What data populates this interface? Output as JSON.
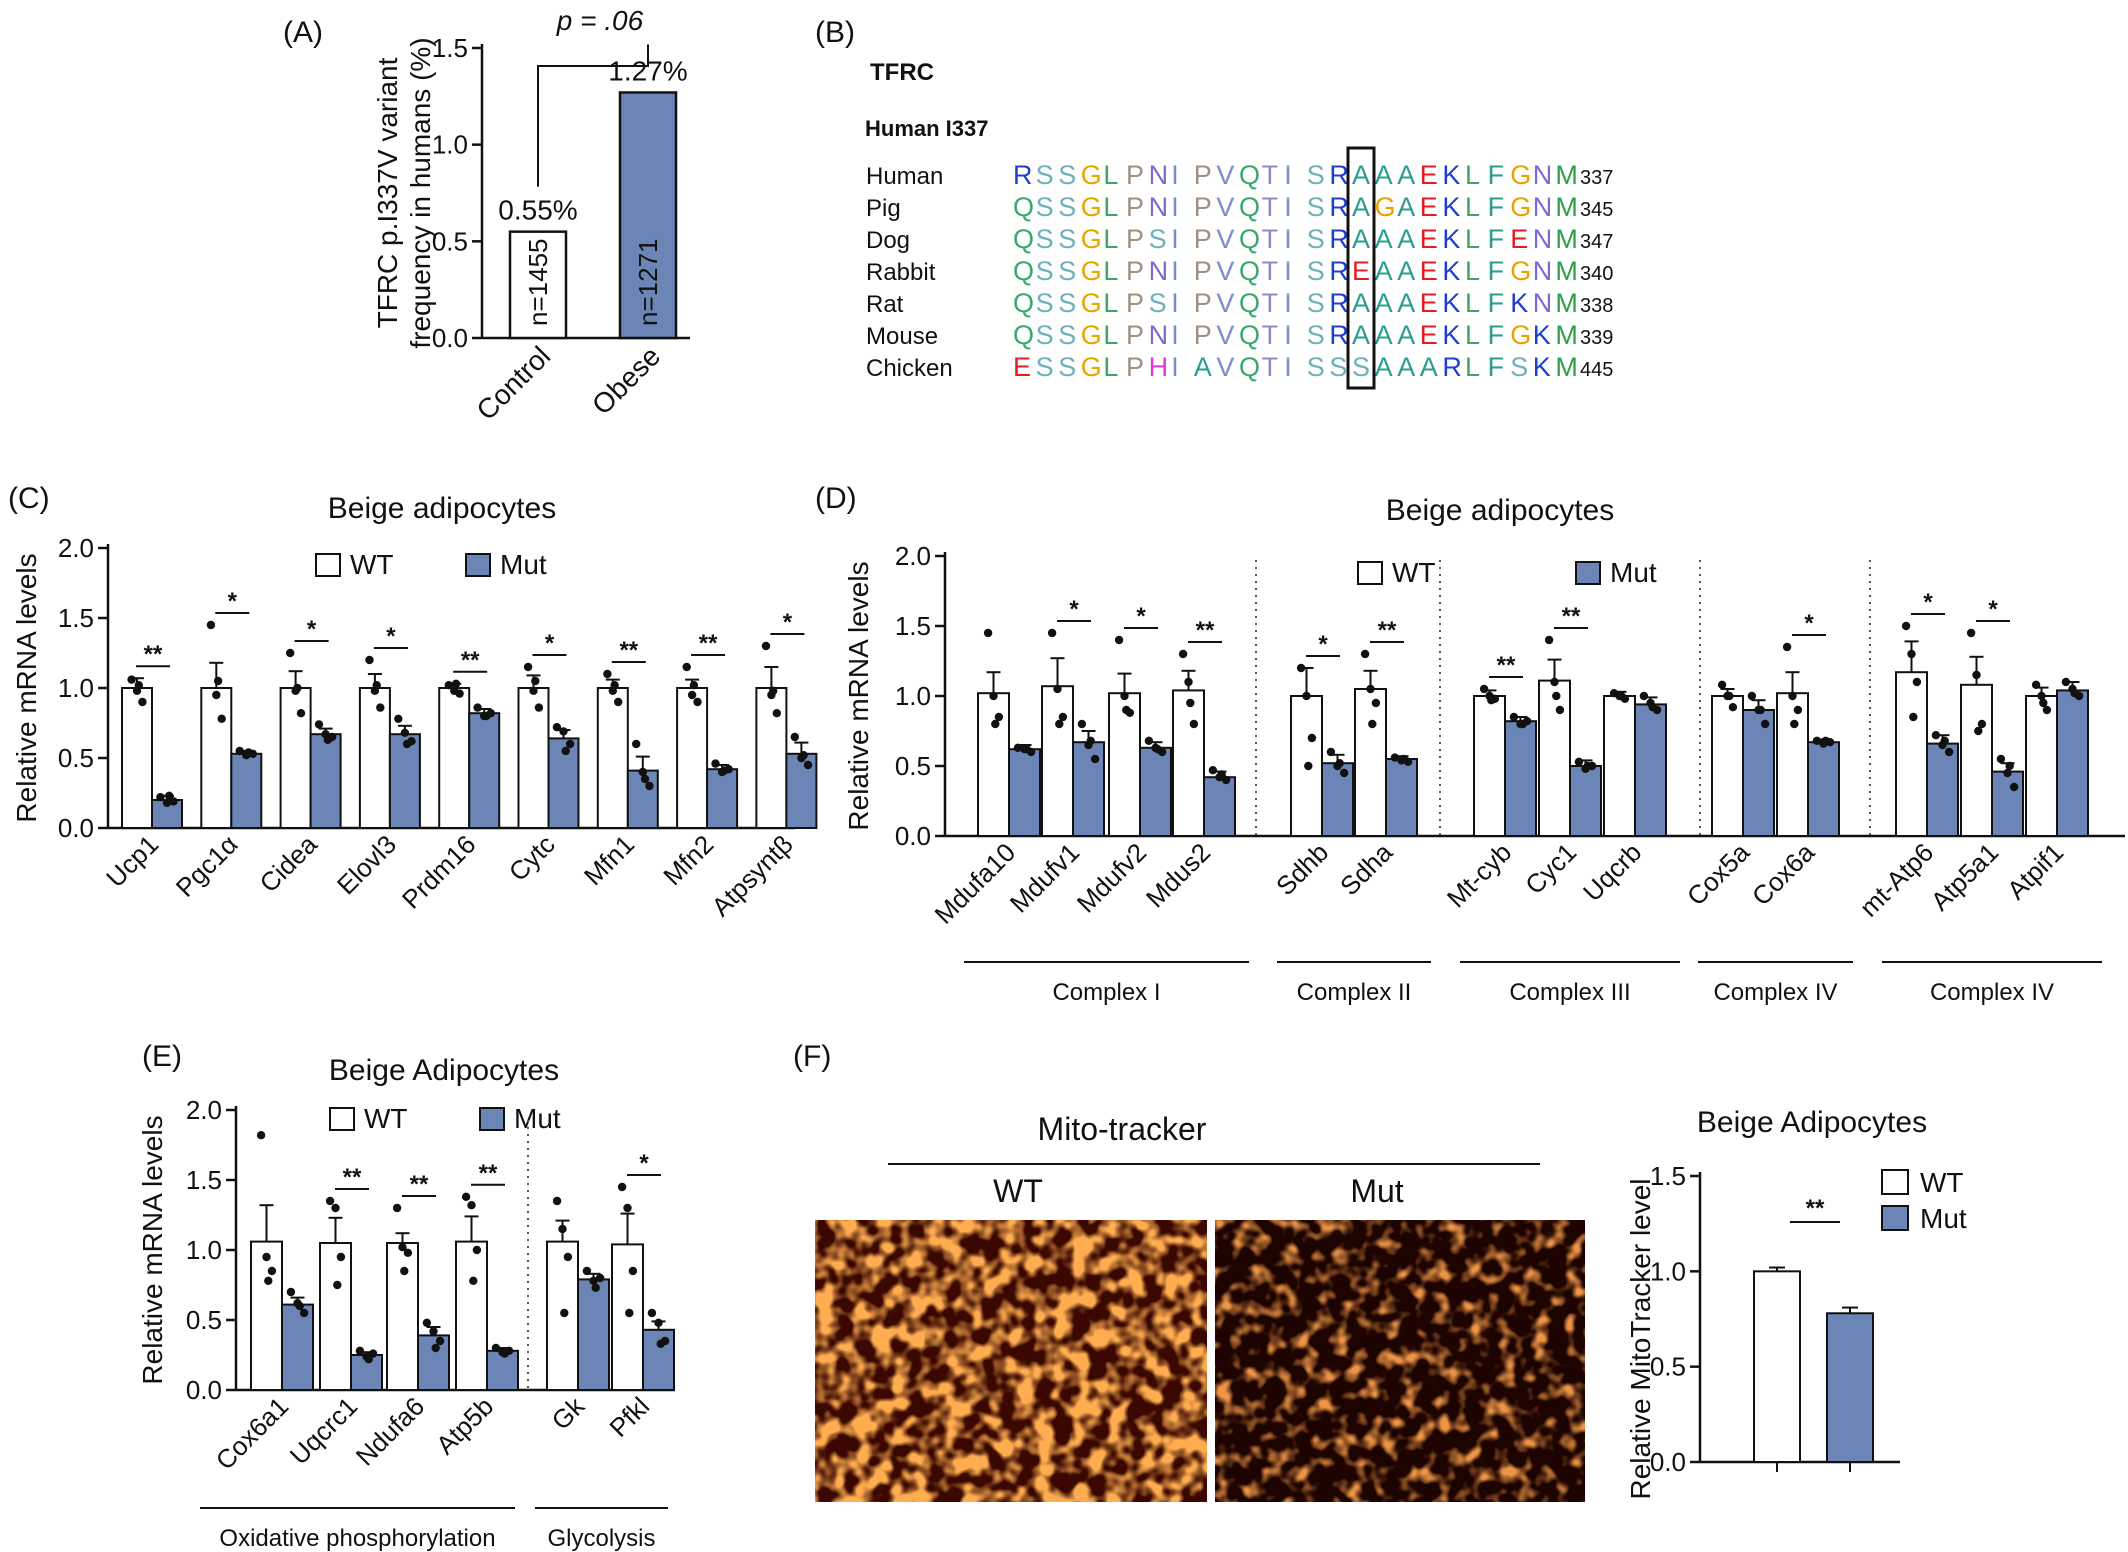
{
  "colors": {
    "wt_fill": "#ffffff",
    "mut_fill": "#6a85b6",
    "axis": "#111111",
    "dot": "#111111"
  },
  "panels": {
    "A": "(A)",
    "B": "(B)",
    "C": "(C)",
    "D": "(D)",
    "E": "(E)",
    "F": "(F)"
  },
  "legend": {
    "wt": "WT",
    "mut": "Mut"
  },
  "panelB": {
    "gene": "TFRC",
    "site": "Human I337",
    "rows": [
      {
        "species": "Human",
        "seq": "RSSGLPNIPVQTISRAAAEKLFGNM",
        "num": "337"
      },
      {
        "species": "Pig",
        "seq": "QSSGLPNIPVQTISRAGAEKLFGNM",
        "num": "345"
      },
      {
        "species": "Dog",
        "seq": "QSSGLPSIPVQTISRAAAEKLFENM",
        "num": "347"
      },
      {
        "species": "Rabbit",
        "seq": "QSSGLPNIPVQTISREAAEKLFGNM",
        "num": "340"
      },
      {
        "species": "Rat",
        "seq": "QSSGLPSIPVQTISRAAAEKLFKNM",
        "num": "338"
      },
      {
        "species": "Mouse",
        "seq": "QSSGLPNIPVQTISRAAAEKLFGKM",
        "num": "339"
      },
      {
        "species": "Chicken",
        "seq": "ESSGLPHIAVQTISSSAAARLFSKM",
        "num": "445"
      }
    ]
  },
  "panelF": {
    "header": "Mito-tracker",
    "wt_label": "WT",
    "mut_label": "Mut"
  },
  "chart_data": [
    {
      "id": "A",
      "type": "bar",
      "ylabel": "TFRC p.I337V variant frequency in humans (%)",
      "ylim": [
        0,
        1.5
      ],
      "yticks": [
        "0.0",
        "0.5",
        "1.0",
        "1.5"
      ],
      "categories": [
        "Control",
        "Obese"
      ],
      "values": [
        0.55,
        1.27
      ],
      "value_labels": [
        "0.55%",
        "1.27%"
      ],
      "n_labels": [
        "n=1455",
        "n=1271"
      ],
      "pvalue": "p = .06"
    },
    {
      "id": "C",
      "type": "bar",
      "title": "Beige adipocytes",
      "ylabel": "Relative mRNA levels",
      "ylim": [
        0,
        2.0
      ],
      "yticks": [
        "0.0",
        "0.5",
        "1.0",
        "1.5",
        "2.0"
      ],
      "categories": [
        "Ucp1",
        "Pgc1α",
        "Cidea",
        "Elovl3",
        "Prdm16",
        "Cytc",
        "Mfn1",
        "Mfn2",
        "Atpsyntβ"
      ],
      "series": [
        {
          "name": "WT",
          "values": [
            1.0,
            1.0,
            1.0,
            1.0,
            1.0,
            1.0,
            1.0,
            1.0,
            1.0
          ],
          "sem": [
            0.07,
            0.18,
            0.12,
            0.1,
            0.03,
            0.09,
            0.06,
            0.06,
            0.15
          ],
          "points": [
            [
              1.06,
              0.98,
              0.9,
              1.02
            ],
            [
              1.45,
              0.95,
              0.78,
              1.05
            ],
            [
              1.25,
              0.98,
              0.82,
              1.0
            ],
            [
              1.2,
              0.98,
              0.86,
              1.02
            ],
            [
              1.02,
              0.98,
              0.96,
              1.03
            ],
            [
              1.15,
              0.98,
              0.86,
              1.05
            ],
            [
              1.1,
              0.98,
              0.9,
              1.02
            ],
            [
              1.15,
              0.95,
              0.9,
              1.02
            ],
            [
              1.3,
              0.95,
              0.82,
              0.98
            ]
          ]
        },
        {
          "name": "Mut",
          "values": [
            0.2,
            0.53,
            0.67,
            0.67,
            0.82,
            0.64,
            0.41,
            0.42,
            0.53
          ],
          "sem": [
            0.03,
            0.02,
            0.04,
            0.06,
            0.03,
            0.06,
            0.1,
            0.03,
            0.08
          ],
          "points": [
            [
              0.22,
              0.18,
              0.19,
              0.23
            ],
            [
              0.55,
              0.52,
              0.53,
              0.54
            ],
            [
              0.74,
              0.67,
              0.65,
              0.63
            ],
            [
              0.78,
              0.68,
              0.62,
              0.6
            ],
            [
              0.86,
              0.8,
              0.82,
              0.8
            ],
            [
              0.72,
              0.69,
              0.6,
              0.55
            ],
            [
              0.6,
              0.4,
              0.3,
              0.35
            ],
            [
              0.46,
              0.4,
              0.42,
              0.41
            ],
            [
              0.65,
              0.5,
              0.45,
              0.52
            ]
          ]
        }
      ],
      "significance": [
        "**",
        "*",
        "*",
        "*",
        "**",
        "*",
        "**",
        "**",
        "*"
      ]
    },
    {
      "id": "D",
      "type": "bar",
      "title": "Beige adipocytes",
      "ylabel": "Relative mRNA levels",
      "ylim": [
        0,
        2.0
      ],
      "yticks": [
        "0.0",
        "0.5",
        "1.0",
        "1.5",
        "2.0"
      ],
      "categories": [
        "Mdufa10",
        "Mdufv1",
        "Mdufv2",
        "Mdus2",
        "Sdhb",
        "Sdha",
        "Mt-cyb",
        "Cyc1",
        "Uqcrb",
        "Cox5a",
        "Cox6a",
        "mt-Atp6",
        "Atp5a1",
        "Atpif1"
      ],
      "series": [
        {
          "name": "WT",
          "values": [
            1.02,
            1.07,
            1.02,
            1.04,
            1.0,
            1.05,
            1.0,
            1.11,
            1.0,
            1.0,
            1.02,
            1.17,
            1.08,
            1.0
          ],
          "sem": [
            0.15,
            0.2,
            0.14,
            0.14,
            0.2,
            0.13,
            0.04,
            0.15,
            0.03,
            0.05,
            0.15,
            0.22,
            0.2,
            0.06
          ],
          "points": [
            [
              1.45,
              1.0,
              0.85,
              0.8
            ],
            [
              1.45,
              1.05,
              0.85,
              0.8
            ],
            [
              1.4,
              1.0,
              0.88,
              0.9
            ],
            [
              1.3,
              1.1,
              0.8,
              0.95
            ],
            [
              1.2,
              1.0,
              0.7,
              0.5
            ],
            [
              1.3,
              1.05,
              0.95,
              0.8
            ],
            [
              1.05,
              1.0,
              0.98,
              0.97
            ],
            [
              1.4,
              1.1,
              0.9,
              1.0
            ],
            [
              1.02,
              1.0,
              0.98,
              1.0
            ],
            [
              1.08,
              1.0,
              0.92,
              1.0
            ],
            [
              1.35,
              1.0,
              0.9,
              0.8
            ],
            [
              1.5,
              1.3,
              1.1,
              0.85
            ],
            [
              1.45,
              1.15,
              0.8,
              0.75
            ],
            [
              1.08,
              1.0,
              0.9,
              0.95
            ]
          ]
        },
        {
          "name": "Mut",
          "values": [
            0.62,
            0.67,
            0.63,
            0.42,
            0.52,
            0.55,
            0.82,
            0.5,
            0.94,
            0.9,
            0.67,
            0.66,
            0.46,
            1.04
          ],
          "sem": [
            0.03,
            0.08,
            0.04,
            0.04,
            0.06,
            0.02,
            0.03,
            0.04,
            0.05,
            0.07,
            0.02,
            0.06,
            0.06,
            0.06
          ],
          "points": [
            [
              0.63,
              0.62,
              0.6,
              0.62
            ],
            [
              0.8,
              0.65,
              0.55,
              0.68
            ],
            [
              0.68,
              0.63,
              0.6,
              0.62
            ],
            [
              0.47,
              0.42,
              0.4,
              0.44
            ],
            [
              0.6,
              0.5,
              0.45,
              0.52
            ],
            [
              0.56,
              0.54,
              0.53,
              0.55
            ],
            [
              0.85,
              0.8,
              0.82,
              0.8
            ],
            [
              0.53,
              0.48,
              0.5,
              0.5
            ],
            [
              1.0,
              0.95,
              0.9,
              0.92
            ],
            [
              1.0,
              0.9,
              0.8,
              0.9
            ],
            [
              0.68,
              0.66,
              0.67,
              0.68
            ],
            [
              0.72,
              0.65,
              0.6,
              0.68
            ],
            [
              0.55,
              0.45,
              0.35,
              0.5
            ],
            [
              1.1,
              1.05,
              1.0,
              1.02
            ]
          ]
        }
      ],
      "significance": [
        "",
        "*",
        "*",
        "**",
        "*",
        "**",
        "**",
        "**",
        "",
        "",
        "*",
        "*",
        "*",
        ""
      ],
      "groups": [
        {
          "label": "Complex I",
          "from": 0,
          "to": 3
        },
        {
          "label": "Complex II",
          "from": 4,
          "to": 5
        },
        {
          "label": "Complex III",
          "from": 6,
          "to": 8
        },
        {
          "label": "Complex IV",
          "from": 9,
          "to": 10
        },
        {
          "label": "Complex IV",
          "from": 11,
          "to": 13
        }
      ]
    },
    {
      "id": "E",
      "type": "bar",
      "title": "Beige Adipocytes",
      "ylabel": "Relative mRNA levels",
      "ylim": [
        0,
        2.0
      ],
      "yticks": [
        "0.0",
        "0.5",
        "1.0",
        "1.5",
        "2.0"
      ],
      "categories": [
        "Cox6a1",
        "Uqcrc1",
        "Ndufa6",
        "Atp5b",
        "Gk",
        "Pfkl"
      ],
      "series": [
        {
          "name": "WT",
          "values": [
            1.06,
            1.05,
            1.05,
            1.06,
            1.06,
            1.04
          ],
          "sem": [
            0.26,
            0.18,
            0.07,
            0.18,
            0.15,
            0.22
          ],
          "points": [
            [
              1.82,
              0.95,
              0.85,
              0.78
            ],
            [
              1.35,
              1.3,
              0.95,
              0.75
            ],
            [
              1.3,
              1.02,
              0.98,
              0.85
            ],
            [
              1.38,
              1.32,
              1.0,
              0.78
            ],
            [
              1.35,
              1.15,
              0.95,
              0.55
            ],
            [
              1.45,
              1.3,
              0.85,
              0.55
            ]
          ]
        },
        {
          "name": "Mut",
          "values": [
            0.61,
            0.25,
            0.39,
            0.28,
            0.79,
            0.43
          ],
          "sem": [
            0.05,
            0.02,
            0.06,
            0.02,
            0.04,
            0.06
          ],
          "points": [
            [
              0.7,
              0.62,
              0.55,
              0.6
            ],
            [
              0.28,
              0.24,
              0.26,
              0.22
            ],
            [
              0.48,
              0.42,
              0.35,
              0.3
            ],
            [
              0.3,
              0.27,
              0.28,
              0.26
            ],
            [
              0.85,
              0.78,
              0.8,
              0.73
            ],
            [
              0.55,
              0.48,
              0.35,
              0.33
            ]
          ]
        }
      ],
      "significance": [
        "",
        "**",
        "**",
        "**",
        "",
        "*"
      ],
      "groups": [
        {
          "label": "Oxidative phosphorylation",
          "from": 0,
          "to": 3
        },
        {
          "label": "Glycolysis",
          "from": 4,
          "to": 5
        }
      ]
    },
    {
      "id": "F",
      "type": "bar",
      "title": "Beige Adipocytes",
      "ylabel": "Relative MitoTracker level",
      "ylim": [
        0,
        1.5
      ],
      "yticks": [
        "0.0",
        "0.5",
        "1.0",
        "1.5"
      ],
      "categories": [
        "WT",
        "Mut"
      ],
      "values": [
        1.0,
        0.78
      ],
      "sem": [
        0.02,
        0.03
      ],
      "significance": "**"
    }
  ]
}
